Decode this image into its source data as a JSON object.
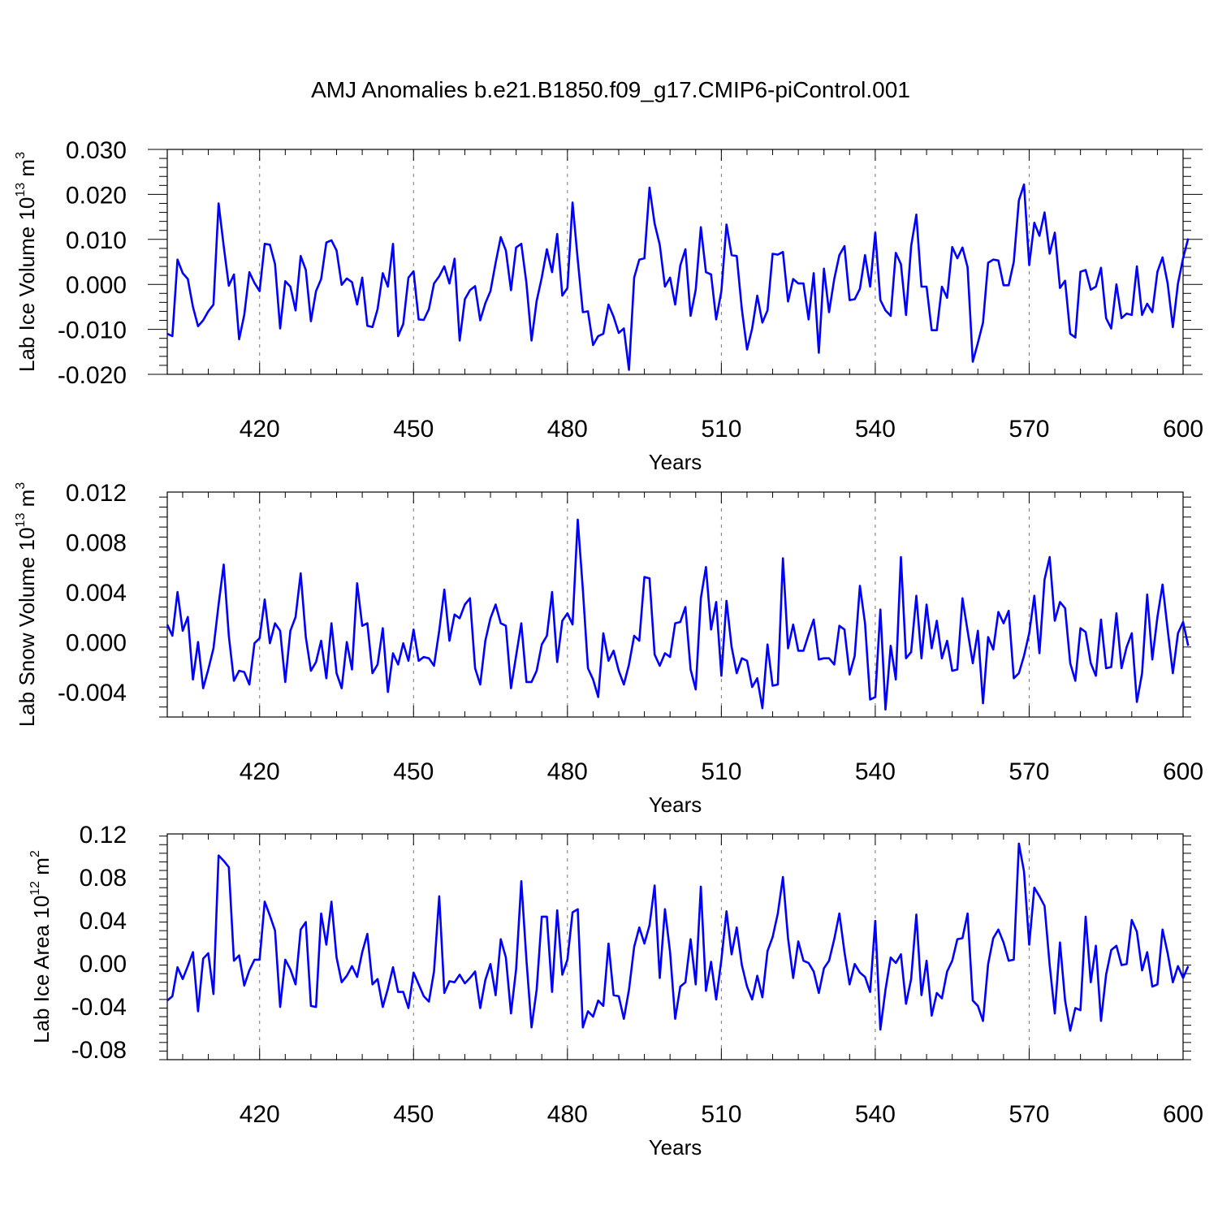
{
  "title": "AMJ Anomalies b.e21.B1850.f09_g17.CMIP6-piControl.001",
  "chart_data": [
    {
      "type": "line",
      "ylabel_prefix": "Lab Ice Volume 10",
      "ylabel_exp": "13",
      "ylabel_unit": "m",
      "ylabel_unit_exp": "3",
      "xlabel": "Years",
      "xlim": [
        402,
        600
      ],
      "ylim": [
        -0.02,
        0.03
      ],
      "yticks": [
        -0.02,
        -0.01,
        0.0,
        0.01,
        0.02,
        0.03
      ],
      "ytick_labels": [
        "-0.020",
        "-0.010",
        "0.000",
        "0.010",
        "0.020",
        "0.030"
      ],
      "xticks": [
        420,
        450,
        480,
        510,
        540,
        570,
        600
      ],
      "xtick_labels": [
        "420",
        "450",
        "480",
        "510",
        "540",
        "570",
        "600"
      ],
      "grid_vertical_dashed": true,
      "series_color": "#0000ff",
      "x_start": 402,
      "values": [
        -0.011,
        -0.0115,
        0.0055,
        0.0025,
        0.0012,
        -0.005,
        -0.0093,
        -0.008,
        -0.006,
        -0.0045,
        0.018,
        0.0085,
        -0.0003,
        0.0022,
        -0.0122,
        -0.0068,
        0.0027,
        0.0003,
        -0.0015,
        0.009,
        0.0088,
        0.0045,
        -0.0098,
        0.0007,
        -0.0005,
        -0.0058,
        0.0063,
        0.0032,
        -0.0082,
        -0.0015,
        0.0012,
        0.0093,
        0.0098,
        0.0075,
        -0.0001,
        0.0013,
        0.0005,
        -0.0045,
        0.0015,
        -0.0092,
        -0.0095,
        -0.0055,
        0.0025,
        -0.0005,
        0.009,
        -0.0115,
        -0.0088,
        0.0015,
        0.0029,
        -0.0078,
        -0.0079,
        -0.0055,
        0.0002,
        0.0018,
        0.004,
        0.0002,
        0.0057,
        -0.0125,
        -0.0033,
        -0.0013,
        -0.0004,
        -0.008,
        -0.0042,
        -0.0015,
        0.0048,
        0.0105,
        0.0075,
        -0.0013,
        0.0082,
        0.009,
        0.0003,
        -0.0125,
        -0.0037,
        0.0015,
        0.0078,
        0.0027,
        0.0112,
        -0.0025,
        -0.0008,
        0.0182,
        0.0055,
        -0.0062,
        -0.006,
        -0.0135,
        -0.0115,
        -0.011,
        -0.0045,
        -0.0072,
        -0.0108,
        -0.0098,
        -0.019,
        0.0015,
        0.0055,
        0.0058,
        0.0215,
        0.0135,
        0.0088,
        -0.0005,
        0.0015,
        -0.0045,
        0.0042,
        0.0078,
        -0.007,
        -0.0012,
        0.0127,
        0.0027,
        0.0022,
        -0.0078,
        -0.0015,
        0.0133,
        0.0065,
        0.0063,
        -0.0055,
        -0.0145,
        -0.0098,
        -0.0025,
        -0.0085,
        -0.0058,
        0.0068,
        0.0066,
        0.0072,
        -0.0038,
        0.0012,
        0.0002,
        0.0002,
        -0.0078,
        0.0025,
        -0.0152,
        0.0035,
        -0.0062,
        0.0012,
        0.0065,
        0.0085,
        -0.0035,
        -0.0033,
        -0.001,
        0.0065,
        -0.0005,
        0.0115,
        -0.0035,
        -0.0058,
        -0.007,
        0.007,
        0.0045,
        -0.0068,
        0.0085,
        0.0155,
        -0.0005,
        -0.0005,
        -0.0102,
        -0.0102,
        -0.0005,
        -0.003,
        0.0083,
        0.0058,
        0.0082,
        0.0038,
        -0.0172,
        -0.013,
        -0.0085,
        0.0048,
        0.0055,
        0.0053,
        -0.0002,
        -0.0002,
        0.005,
        0.0187,
        0.0222,
        0.0043,
        0.0137,
        0.0108,
        0.016,
        0.0068,
        0.0115,
        -0.0008,
        0.0008,
        -0.011,
        -0.0118,
        0.0028,
        0.0032,
        -0.0012,
        -0.0005,
        0.0037,
        -0.0075,
        -0.0098,
        0.0,
        -0.0075,
        -0.0065,
        -0.0068,
        0.004,
        -0.0068,
        -0.0043,
        -0.0062,
        0.0028,
        0.006,
        0.0002,
        -0.0095,
        0.0002,
        0.0058,
        0.0102
      ]
    },
    {
      "type": "line",
      "ylabel_prefix": "Lab Snow Volume 10",
      "ylabel_exp": "13",
      "ylabel_unit": "m",
      "ylabel_unit_exp": "3",
      "xlabel": "Years",
      "xlim": [
        402,
        600
      ],
      "ylim": [
        -0.006,
        0.012
      ],
      "yticks": [
        -0.004,
        0.0,
        0.004,
        0.008,
        0.012
      ],
      "ytick_labels": [
        "-0.004",
        "0.000",
        "0.004",
        "0.008",
        "0.012"
      ],
      "xticks": [
        420,
        450,
        480,
        510,
        540,
        570,
        600
      ],
      "xtick_labels": [
        "420",
        "450",
        "480",
        "510",
        "540",
        "570",
        "600"
      ],
      "grid_vertical_dashed": true,
      "series_color": "#0000ff",
      "x_start": 402,
      "values": [
        0.0014,
        0.0005,
        0.004,
        0.0009,
        0.002,
        -0.003,
        0.0,
        -0.0037,
        -0.0022,
        -0.0005,
        0.003,
        0.0062,
        0.0005,
        -0.0031,
        -0.0023,
        -0.0024,
        -0.0034,
        -0.0001,
        0.0003,
        0.0034,
        -0.0001,
        0.0015,
        0.0009,
        -0.0032,
        0.0009,
        0.002,
        0.0055,
        0.0004,
        -0.0023,
        -0.0016,
        0.0001,
        -0.0029,
        0.0015,
        -0.0025,
        -0.0037,
        0.0,
        -0.0022,
        0.0047,
        0.0013,
        0.0015,
        -0.0025,
        -0.0018,
        0.0011,
        -0.004,
        -0.0009,
        -0.0018,
        -0.0001,
        -0.0015,
        0.001,
        -0.0015,
        -0.0012,
        -0.0013,
        -0.0019,
        0.0009,
        0.0042,
        0.0001,
        0.0022,
        0.0019,
        0.003,
        0.0035,
        -0.0021,
        -0.0034,
        0.0001,
        0.0019,
        0.003,
        0.0015,
        0.0013,
        -0.0037,
        -0.0011,
        0.0015,
        -0.0032,
        -0.0032,
        -0.0023,
        -0.0002,
        0.0005,
        0.004,
        -0.0016,
        0.0017,
        0.0023,
        0.0014,
        0.0098,
        0.0042,
        -0.0021,
        -0.003,
        -0.0044,
        0.0007,
        -0.0015,
        -0.0007,
        -0.0023,
        -0.0034,
        -0.0018,
        0.0005,
        0.0001,
        0.0052,
        0.0051,
        -0.001,
        -0.0019,
        -0.0009,
        -0.0012,
        0.0015,
        0.0016,
        0.0028,
        -0.0022,
        -0.0038,
        0.0035,
        0.006,
        0.001,
        0.0032,
        -0.0027,
        0.0033,
        -0.0004,
        -0.0025,
        -0.0013,
        -0.0015,
        -0.0036,
        -0.0029,
        -0.0053,
        -0.0002,
        -0.0035,
        -0.0034,
        0.0067,
        -0.0005,
        0.0014,
        -0.0007,
        -0.0007,
        0.0006,
        0.0018,
        -0.0014,
        -0.0013,
        -0.0013,
        -0.0018,
        0.0013,
        0.001,
        -0.0026,
        -0.0011,
        0.0045,
        0.0015,
        -0.0046,
        -0.0044,
        0.0026,
        -0.0054,
        -0.0003,
        -0.003,
        0.0068,
        -0.0013,
        -0.0008,
        0.0037,
        -0.0013,
        0.003,
        -0.0005,
        0.0017,
        -0.0013,
        0.0001,
        -0.0023,
        -0.0022,
        0.0035,
        0.0009,
        -0.0017,
        0.0009,
        -0.0049,
        0.0004,
        -0.0006,
        0.0024,
        0.0015,
        0.0025,
        -0.0029,
        -0.0025,
        -0.0011,
        0.0007,
        0.0037,
        -0.0009,
        0.005,
        0.0068,
        0.0017,
        0.0032,
        0.0027,
        -0.0017,
        -0.0031,
        0.0011,
        0.0008,
        -0.0017,
        -0.0027,
        0.0018,
        -0.0021,
        -0.002,
        0.0023,
        -0.0021,
        -0.0004,
        0.0007,
        -0.0048,
        -0.0025,
        0.0038,
        -0.0014,
        0.002,
        0.0046,
        0.001,
        -0.0025,
        0.0007,
        0.0016,
        -0.0003
      ]
    },
    {
      "type": "line",
      "ylabel_prefix": "Lab Ice Area 10",
      "ylabel_exp": "12",
      "ylabel_unit": "m",
      "ylabel_unit_exp": "2",
      "xlabel": "Years",
      "xlim": [
        402,
        600
      ],
      "ylim": [
        -0.09,
        0.12
      ],
      "yticks": [
        -0.08,
        -0.04,
        0.0,
        0.04,
        0.08,
        0.12
      ],
      "ytick_labels": [
        "-0.08",
        "-0.04",
        "0.00",
        "0.04",
        "0.08",
        "0.12"
      ],
      "xticks": [
        420,
        450,
        480,
        510,
        540,
        570,
        600
      ],
      "xtick_labels": [
        "420",
        "450",
        "480",
        "510",
        "540",
        "570",
        "600"
      ],
      "grid_vertical_dashed": true,
      "series_color": "#0000ff",
      "x_start": 402,
      "values": [
        -0.035,
        -0.031,
        -0.004,
        -0.015,
        -0.003,
        0.01,
        -0.045,
        0.004,
        0.009,
        -0.029,
        0.1,
        0.095,
        0.089,
        0.002,
        0.007,
        -0.021,
        -0.007,
        0.003,
        0.003,
        0.057,
        0.044,
        0.03,
        -0.041,
        0.003,
        -0.006,
        -0.02,
        0.031,
        0.038,
        -0.04,
        -0.041,
        0.046,
        0.017,
        0.057,
        0.005,
        -0.018,
        -0.012,
        -0.003,
        -0.013,
        0.01,
        0.027,
        -0.02,
        -0.015,
        -0.041,
        -0.024,
        -0.004,
        -0.027,
        -0.027,
        -0.042,
        -0.009,
        -0.02,
        -0.031,
        -0.036,
        -0.008,
        0.062,
        -0.028,
        -0.017,
        -0.018,
        -0.011,
        -0.019,
        -0.014,
        -0.008,
        -0.042,
        -0.016,
        -0.001,
        -0.03,
        0.022,
        0.005,
        -0.047,
        -0.006,
        0.076,
        0.003,
        -0.06,
        -0.025,
        0.043,
        0.043,
        -0.027,
        0.049,
        -0.011,
        0.003,
        0.047,
        0.05,
        -0.06,
        -0.045,
        -0.05,
        -0.035,
        -0.04,
        0.018,
        -0.03,
        -0.031,
        -0.052,
        -0.025,
        0.015,
        0.033,
        0.018,
        0.035,
        0.072,
        -0.014,
        0.05,
        0.01,
        -0.052,
        -0.022,
        -0.018,
        0.022,
        -0.02,
        0.071,
        -0.026,
        0.001,
        -0.034,
        0.003,
        0.048,
        0.008,
        0.033,
        -0.002,
        -0.022,
        -0.034,
        -0.012,
        -0.032,
        0.011,
        0.024,
        0.046,
        0.08,
        0.023,
        -0.014,
        0.02,
        0.002,
        0.0,
        -0.008,
        -0.028,
        -0.005,
        0.002,
        0.022,
        0.046,
        0.01,
        -0.02,
        -0.001,
        -0.009,
        -0.013,
        -0.027,
        0.039,
        -0.062,
        -0.025,
        0.005,
        0.0,
        0.008,
        -0.038,
        -0.015,
        0.045,
        -0.03,
        0.002,
        -0.049,
        -0.028,
        -0.033,
        -0.008,
        0.002,
        0.022,
        0.023,
        0.046,
        -0.035,
        -0.04,
        -0.054,
        -0.001,
        0.023,
        0.031,
        0.019,
        0.002,
        0.003,
        0.111,
        0.085,
        0.017,
        0.07,
        0.062,
        0.053,
        -0.002,
        -0.047,
        0.019,
        -0.035,
        -0.063,
        -0.042,
        -0.044,
        0.043,
        -0.018,
        0.016,
        -0.054,
        -0.011,
        0.012,
        0.016,
        -0.002,
        -0.001,
        0.04,
        0.029,
        -0.007,
        0.01,
        -0.022,
        -0.02,
        0.031,
        0.009,
        -0.018,
        -0.003,
        -0.014,
        -0.003
      ]
    }
  ]
}
